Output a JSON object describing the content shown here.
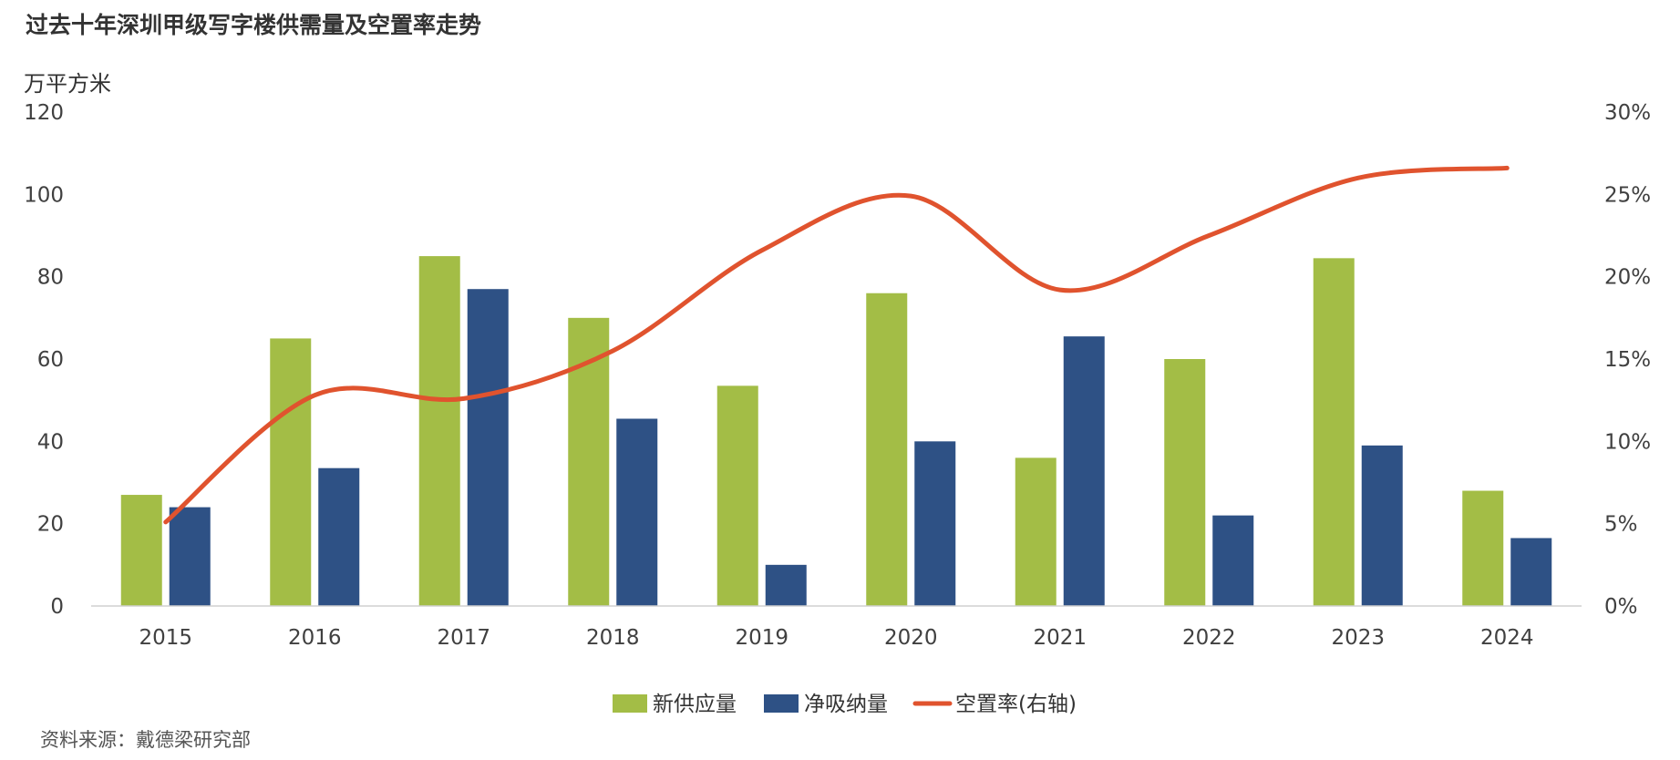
{
  "title": "过去十年深圳甲级写字楼供需量及空置率走势",
  "unit_label": "万平方米",
  "source": "资料来源：戴德梁研究部",
  "chart_data": {
    "type": "bar",
    "title": "过去十年深圳甲级写字楼供需量及空置率走势",
    "ylabel": "万平方米",
    "categories": [
      "2015",
      "2016",
      "2017",
      "2018",
      "2019",
      "2020",
      "2021",
      "2022",
      "2023",
      "2024"
    ],
    "ylim": [
      0,
      120
    ],
    "y_ticks": [
      "0",
      "20",
      "40",
      "60",
      "80",
      "100",
      "120"
    ],
    "y_tick_values": [
      0,
      20,
      40,
      60,
      80,
      100,
      120
    ],
    "y2lim": [
      0,
      30
    ],
    "y2_ticks": [
      "0%",
      "5%",
      "10%",
      "15%",
      "20%",
      "25%",
      "30%"
    ],
    "y2_tick_values": [
      0,
      5,
      10,
      15,
      20,
      25,
      30
    ],
    "grid": false,
    "legend_position": "bottom",
    "series": [
      {
        "name": "新供应量",
        "type": "bar",
        "axis": "left",
        "color": "#a3bd46",
        "values": [
          27,
          65,
          85,
          70,
          53.5,
          76,
          36,
          60,
          84.5,
          28
        ]
      },
      {
        "name": "净吸纳量",
        "type": "bar",
        "axis": "left",
        "color": "#2e5185",
        "values": [
          24,
          33.5,
          77,
          45.5,
          10,
          40,
          65.5,
          22,
          39,
          16.5
        ]
      },
      {
        "name": "空置率(右轴)",
        "type": "line",
        "axis": "right",
        "color": "#e0532e",
        "values": [
          5.1,
          12.8,
          12.6,
          15.5,
          21.6,
          24.9,
          19.2,
          22.5,
          26.0,
          26.6
        ]
      }
    ]
  }
}
